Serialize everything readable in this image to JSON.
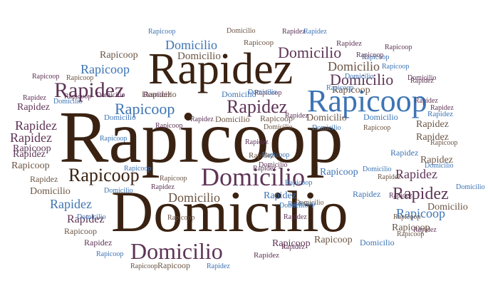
{
  "colors": {
    "brown": "#3a2212",
    "plum": "#5e3456",
    "blue": "#3d74b4",
    "taupe": "#6b5444"
  },
  "words": [
    {
      "text": "Rapicoop",
      "color": "brown"
    },
    {
      "text": "Domicilio",
      "color": "brown"
    },
    {
      "text": "Rapidez",
      "color": "brown"
    },
    {
      "text": "Rapicoop",
      "color": "blue"
    },
    {
      "text": "Rapidez",
      "color": "plum"
    },
    {
      "text": "Domicilio",
      "color": "plum"
    },
    {
      "text": "Domicilio",
      "color": "plum"
    },
    {
      "text": "Rapicoop",
      "color": "brown"
    },
    {
      "text": "Domicilio",
      "color": "plum"
    },
    {
      "text": "Rapidez",
      "color": "plum"
    },
    {
      "text": "Rapicoop",
      "color": "blue"
    },
    {
      "text": "Domicilio",
      "color": "plum"
    },
    {
      "text": "Domicilio",
      "color": "taupe"
    },
    {
      "text": "Domicilio",
      "color": "blue"
    },
    {
      "text": "Rapicoop",
      "color": "taupe"
    },
    {
      "text": "Domicilio",
      "color": "taupe"
    },
    {
      "text": "Domicilio",
      "color": "taupe"
    },
    {
      "text": "Rapidez",
      "color": "plum"
    },
    {
      "text": "Rapidez",
      "color": "plum"
    },
    {
      "text": "Rapidez",
      "color": "plum"
    },
    {
      "text": "Rapidez",
      "color": "plum"
    },
    {
      "text": "Rapidez",
      "color": "plum"
    },
    {
      "text": "Rapicoop",
      "color": "blue"
    },
    {
      "text": "Rapidez",
      "color": "blue"
    },
    {
      "text": "Rapicoop",
      "color": "blue"
    },
    {
      "text": "Rapicoop",
      "color": "taupe"
    },
    {
      "text": "Domicilio",
      "color": "taupe"
    },
    {
      "text": "Rapicoop",
      "color": "taupe"
    },
    {
      "text": "Rapicoop",
      "color": "taupe"
    },
    {
      "text": "Rapicoop",
      "color": "taupe"
    },
    {
      "text": "Rapidez",
      "color": "plum"
    },
    {
      "text": "Rapidez",
      "color": "plum"
    },
    {
      "text": "Rapicoop",
      "color": "plum"
    },
    {
      "text": "Rapidez",
      "color": "taupe"
    },
    {
      "text": "Rapidez",
      "color": "taupe"
    },
    {
      "text": "Rapicoop",
      "color": "plum"
    },
    {
      "text": "Rapicoop",
      "color": "taupe"
    },
    {
      "text": "Rapidez",
      "color": "taupe"
    },
    {
      "text": "Domicilio",
      "color": "taupe"
    },
    {
      "text": "Domicilio",
      "color": "blue"
    },
    {
      "text": "Rapidez",
      "color": "plum"
    },
    {
      "text": "Domicilio",
      "color": "taupe"
    },
    {
      "text": "Rapicoop",
      "color": "taupe"
    },
    {
      "text": "Rapicoop",
      "color": "taupe"
    },
    {
      "text": "Rapidez",
      "color": "taupe"
    },
    {
      "text": "Domicilio",
      "color": "blue"
    },
    {
      "text": "Rapicoop",
      "color": "blue"
    },
    {
      "text": "Rapidez",
      "color": "plum"
    },
    {
      "text": "Domicilio",
      "color": "plum"
    },
    {
      "text": "Rapidez",
      "color": "plum"
    },
    {
      "text": "Rapidez",
      "color": "blue"
    },
    {
      "text": "Rapidez",
      "color": "blue"
    },
    {
      "text": "Rapicoop",
      "color": "blue"
    },
    {
      "text": "Rapicoop",
      "color": "plum"
    },
    {
      "text": "Rapicoop",
      "color": "taupe"
    },
    {
      "text": "Rapicoop",
      "color": "taupe"
    },
    {
      "text": "Rapicoop",
      "color": "taupe"
    },
    {
      "text": "Domicilio",
      "color": "blue"
    },
    {
      "text": "Domicilio",
      "color": "plum"
    },
    {
      "text": "Rapidez",
      "color": "taupe"
    },
    {
      "text": "Rapidez",
      "color": "plum"
    },
    {
      "text": "Domicilio",
      "color": "taupe"
    },
    {
      "text": "Domicilio",
      "color": "taupe"
    },
    {
      "text": "Domicilio",
      "color": "blue"
    },
    {
      "text": "Rapidez",
      "color": "blue"
    },
    {
      "text": "Rapidez",
      "color": "plum"
    },
    {
      "text": "Rapicoop",
      "color": "taupe"
    },
    {
      "text": "Domicilio",
      "color": "blue"
    },
    {
      "text": "Rapicoop",
      "color": "plum"
    },
    {
      "text": "Domicilio",
      "color": "taupe"
    },
    {
      "text": "Domicilio",
      "color": "blue"
    },
    {
      "text": "Rapicoop",
      "color": "taupe"
    },
    {
      "text": "Rapidez",
      "color": "plum"
    },
    {
      "text": "Rapicoop",
      "color": "taupe"
    },
    {
      "text": "Rapidez",
      "color": "blue"
    },
    {
      "text": "Domicilio",
      "color": "blue"
    },
    {
      "text": "Rapicoop",
      "color": "blue"
    },
    {
      "text": "Rapidez",
      "color": "plum"
    },
    {
      "text": "Domicilio",
      "color": "blue"
    },
    {
      "text": "Rapicoop",
      "color": "blue"
    },
    {
      "text": "Rapidez",
      "color": "plum"
    },
    {
      "text": "Rapicoop",
      "color": "plum"
    },
    {
      "text": "Rapicoop",
      "color": "blue"
    },
    {
      "text": "Rapidez",
      "color": "plum"
    },
    {
      "text": "Domicilio",
      "color": "blue"
    },
    {
      "text": "Rapidez",
      "color": "blue"
    },
    {
      "text": "Rapicoop",
      "color": "blue"
    },
    {
      "text": "Domicilio",
      "color": "taupe"
    },
    {
      "text": "Rapidez",
      "color": "plum"
    },
    {
      "text": "Rapicoop",
      "color": "plum"
    },
    {
      "text": "Rapidez",
      "color": "plum"
    },
    {
      "text": "Domicilio",
      "color": "plum"
    },
    {
      "text": "Rapicoop",
      "color": "plum"
    },
    {
      "text": "Domicilio",
      "color": "blue"
    },
    {
      "text": "Domicilio",
      "color": "blue"
    },
    {
      "text": "Domicilio",
      "color": "blue"
    },
    {
      "text": "Rapicoop",
      "color": "blue"
    },
    {
      "text": "Rapidez",
      "color": "plum"
    },
    {
      "text": "Rapicoop",
      "color": "blue"
    },
    {
      "text": "Rapidez",
      "color": "plum"
    },
    {
      "text": "Rapicoop",
      "color": "blue"
    },
    {
      "text": "Rapidez",
      "color": "plum"
    },
    {
      "text": "Rapidez",
      "color": "plum"
    },
    {
      "text": "Rapicoop",
      "color": "taupe"
    },
    {
      "text": "Domicilio",
      "color": "taupe"
    },
    {
      "text": "Rapidez",
      "color": "blue"
    },
    {
      "text": "Rapicoop",
      "color": "blue"
    },
    {
      "text": "Domicilio",
      "color": "blue"
    },
    {
      "text": "Rapicoop",
      "color": "taupe"
    },
    {
      "text": "Rapidez",
      "color": "plum"
    },
    {
      "text": "Rapidez",
      "color": "taupe"
    },
    {
      "text": "Domicilio",
      "color": "blue"
    },
    {
      "text": "Rapicoop",
      "color": "plum"
    },
    {
      "text": "Rapicoop",
      "color": "taupe"
    },
    {
      "text": "Rapicoop",
      "color": "blue"
    },
    {
      "text": "Rapidez",
      "color": "plum"
    },
    {
      "text": "Rapidez",
      "color": "plum"
    }
  ]
}
